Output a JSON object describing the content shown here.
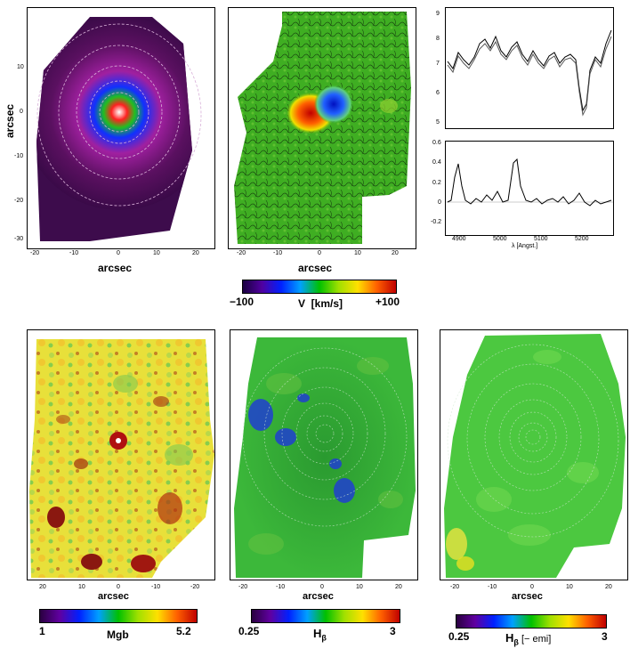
{
  "top_row": {
    "ylabel": "arcsec",
    "ax1_xlabel": "arcsec",
    "ax1_xticks": [
      "-20",
      "-10",
      "0",
      "10",
      "20"
    ],
    "ax1_yticks": [
      "-30",
      "-20",
      "-10",
      "0",
      "10"
    ],
    "ax2_xlabel": "arcsec",
    "ax2_xticks": [
      "-20",
      "-10",
      "0",
      "10",
      "20"
    ],
    "vel_cbar_min": "−100",
    "vel_cbar_label": "V  [km/s]",
    "vel_cbar_max": "+100"
  },
  "spectra": {
    "top_yticks": [
      "9",
      "8",
      "7",
      "6",
      "5"
    ],
    "bottom_yticks": [
      "0.6",
      "0.4",
      "0.2",
      "0",
      "-0.2"
    ],
    "xticks": [
      "4900",
      "5000",
      "5100",
      "5200"
    ],
    "xlabel": "λ [Angst.]"
  },
  "bottom_row": {
    "mgb_xticks": [
      "20",
      "10",
      "0",
      "-10",
      "-20"
    ],
    "mgb_xlabel": "arcsec",
    "mgb_cbar_min": "1",
    "mgb_cbar_label": "Mgb",
    "mgb_cbar_max": "5.2",
    "hb_xticks": [
      "-20",
      "-10",
      "0",
      "10",
      "20"
    ],
    "hb_xlabel": "arcsec",
    "hb_cbar_min": "0.25",
    "hb_cbar_label_main": "H",
    "hb_cbar_label_sub": "β",
    "hb_cbar_max": "3",
    "hbe_xticks": [
      "-20",
      "-10",
      "0",
      "10",
      "20"
    ],
    "hbe_xlabel": "arcsec",
    "hbe_cbar_min": "0.25",
    "hbe_cbar_label_main": "H",
    "hbe_cbar_label_sub": "β",
    "hbe_cbar_label_suffix": " [− emi]",
    "hbe_cbar_max": "3"
  }
}
